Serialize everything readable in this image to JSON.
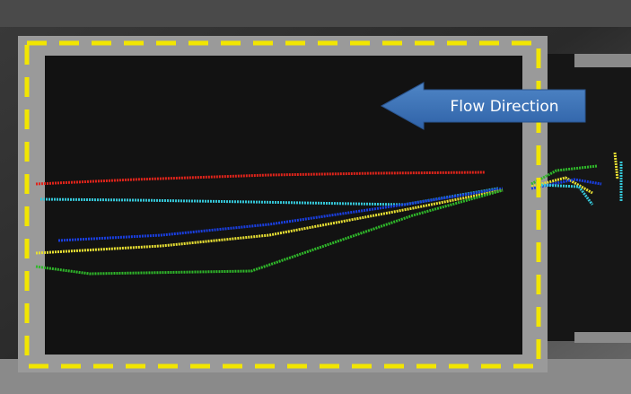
{
  "annotation": {
    "label": "Flow Direction"
  }
}
